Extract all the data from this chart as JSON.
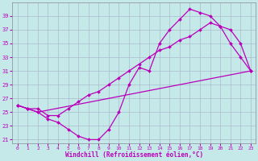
{
  "xlabel": "Windchill (Refroidissement éolien,°C)",
  "bg_color": "#c5e8e8",
  "line_color": "#bb00bb",
  "grid_color": "#aabbcc",
  "xlim": [
    -0.5,
    23.5
  ],
  "ylim": [
    20.5,
    41.0
  ],
  "xticks": [
    0,
    1,
    2,
    3,
    4,
    5,
    6,
    7,
    8,
    9,
    10,
    11,
    12,
    13,
    14,
    15,
    16,
    17,
    18,
    19,
    20,
    21,
    22,
    23
  ],
  "yticks": [
    21,
    23,
    25,
    27,
    29,
    31,
    33,
    35,
    37,
    39
  ],
  "line1_x": [
    0,
    1,
    2,
    3,
    4,
    5,
    6,
    7,
    8,
    9,
    10,
    11,
    12,
    13,
    14,
    15,
    16,
    17,
    18,
    19,
    20,
    21,
    22,
    23
  ],
  "line1_y": [
    26,
    25.5,
    25,
    24,
    23.5,
    22.5,
    21.5,
    21,
    21,
    22.5,
    25,
    29,
    31.5,
    31,
    35,
    37,
    38.5,
    40,
    39.5,
    39,
    37.5,
    35,
    33,
    31
  ],
  "line2_x": [
    0,
    1,
    2,
    3,
    4,
    5,
    6,
    7,
    8,
    9,
    10,
    11,
    12,
    13,
    14,
    15,
    16,
    17,
    18,
    19,
    20,
    21,
    22,
    23
  ],
  "line2_y": [
    26,
    25.5,
    25.5,
    24.5,
    24.5,
    25.5,
    26.5,
    27.5,
    28,
    29,
    30,
    31,
    32,
    33,
    34,
    34.5,
    35.5,
    36,
    37,
    38,
    37.5,
    37,
    35,
    31
  ],
  "line3_x": [
    0,
    1,
    2,
    23
  ],
  "line3_y": [
    26,
    25.5,
    25,
    31
  ]
}
